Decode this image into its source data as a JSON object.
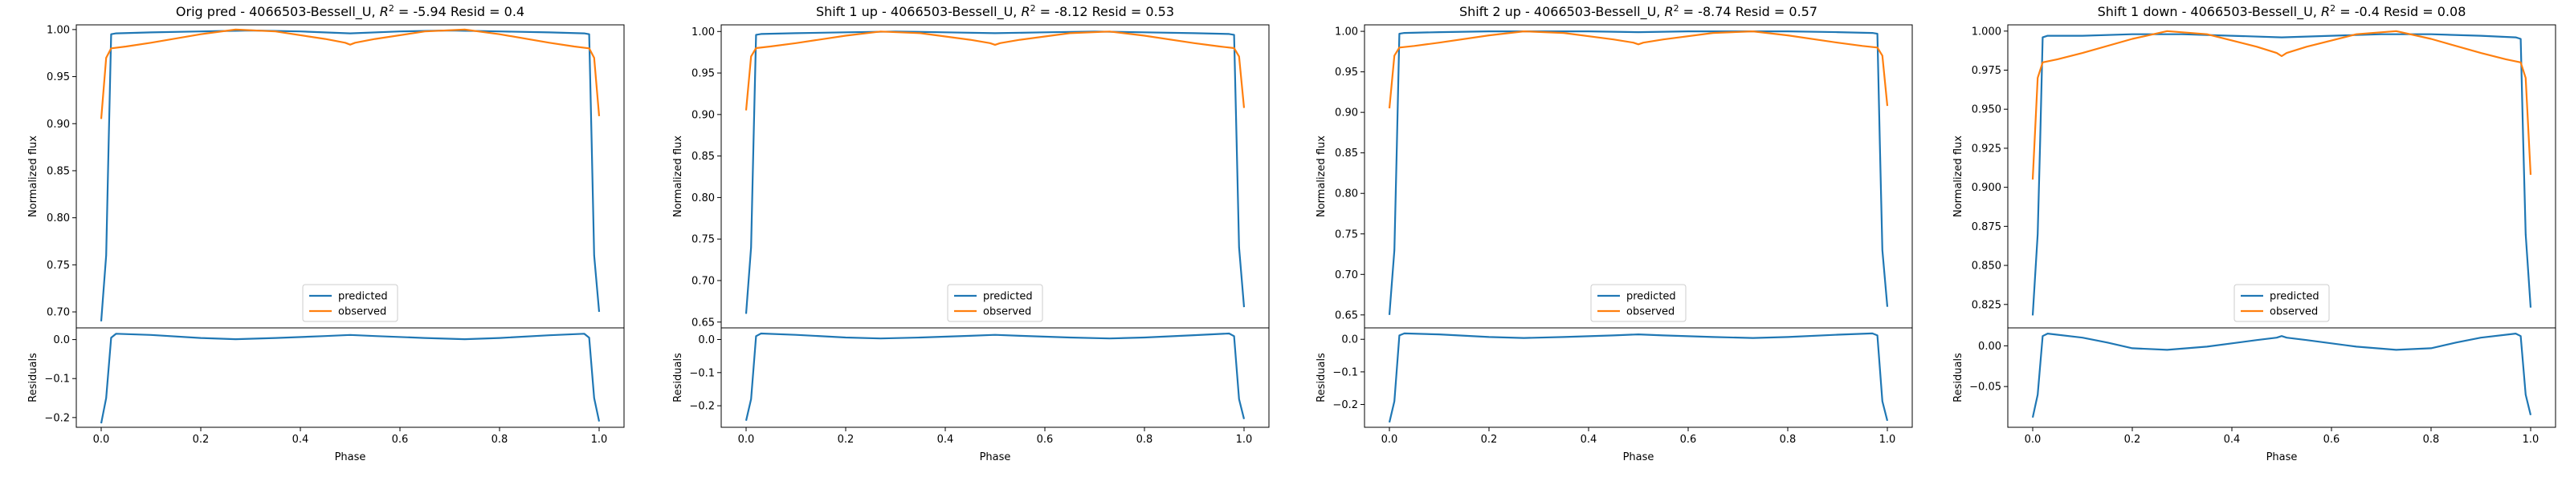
{
  "colors": {
    "predicted": "#1f77b4",
    "observed": "#ff7f0e",
    "axis": "#000000"
  },
  "chart_data": [
    {
      "type": "line",
      "title": "Orig pred - 4066503-Bessell_U, $R^2$ = -5.94 Resid = 0.4",
      "title_parts": {
        "pre": "Orig pred - 4066503-Bessell_U, ",
        "r2_sym": "R",
        "r2_sup": "2",
        "post": " = -5.94 Resid = 0.4"
      },
      "xlabel": "Phase",
      "ylabel_top": "Normalized flux",
      "ylabel_bottom": "Residuals",
      "xlim": [
        -0.05,
        1.05
      ],
      "xticks": [
        0.0,
        0.2,
        0.4,
        0.6,
        0.8,
        1.0
      ],
      "xtick_labels": [
        "0.0",
        "0.2",
        "0.4",
        "0.6",
        "0.8",
        "1.0"
      ],
      "top_ylim": [
        0.683,
        1.005
      ],
      "top_yticks": [
        0.7,
        0.75,
        0.8,
        0.85,
        0.9,
        0.95,
        1.0
      ],
      "top_ytick_labels": [
        "0.70",
        "0.75",
        "0.80",
        "0.85",
        "0.90",
        "0.95",
        "1.00"
      ],
      "bottom_ylim": [
        -0.225,
        0.03
      ],
      "bottom_yticks": [
        -0.2,
        -0.1,
        0.0
      ],
      "bottom_ytick_labels": [
        "−0.2",
        "−0.1",
        "0.0"
      ],
      "legend": [
        "predicted",
        "observed"
      ],
      "legend_loc": "lower center",
      "series": [
        {
          "name": "predicted",
          "x": [
            0.0,
            0.01,
            0.015,
            0.02,
            0.03,
            0.1,
            0.2,
            0.3,
            0.4,
            0.5,
            0.6,
            0.7,
            0.8,
            0.9,
            0.97,
            0.98,
            0.985,
            0.99,
            1.0
          ],
          "y": [
            0.69,
            0.76,
            0.88,
            0.995,
            0.996,
            0.997,
            0.998,
            0.999,
            0.998,
            0.996,
            0.998,
            0.999,
            0.998,
            0.997,
            0.996,
            0.995,
            0.88,
            0.76,
            0.7
          ]
        },
        {
          "name": "observed",
          "x": [
            0.0,
            0.01,
            0.02,
            0.05,
            0.1,
            0.2,
            0.27,
            0.35,
            0.45,
            0.49,
            0.5,
            0.51,
            0.55,
            0.65,
            0.73,
            0.8,
            0.9,
            0.95,
            0.98,
            0.99,
            1.0
          ],
          "y": [
            0.905,
            0.97,
            0.98,
            0.982,
            0.986,
            0.995,
            1.0,
            0.998,
            0.99,
            0.986,
            0.984,
            0.986,
            0.99,
            0.998,
            1.0,
            0.995,
            0.986,
            0.982,
            0.98,
            0.97,
            0.908
          ]
        },
        {
          "name": "residual",
          "x": [
            0.0,
            0.01,
            0.02,
            0.03,
            0.1,
            0.2,
            0.27,
            0.35,
            0.45,
            0.5,
            0.55,
            0.65,
            0.73,
            0.8,
            0.9,
            0.97,
            0.98,
            0.99,
            1.0
          ],
          "y": [
            -0.215,
            -0.15,
            0.005,
            0.015,
            0.012,
            0.004,
            0.001,
            0.004,
            0.009,
            0.012,
            0.009,
            0.004,
            0.001,
            0.004,
            0.011,
            0.015,
            0.005,
            -0.15,
            -0.21
          ]
        }
      ]
    },
    {
      "type": "line",
      "title": "Shift 1 up - 4066503-Bessell_U, $R^2$ = -8.12 Resid = 0.53",
      "title_parts": {
        "pre": "Shift 1 up - 4066503-Bessell_U, ",
        "r2_sym": "R",
        "r2_sup": "2",
        "post": " = -8.12 Resid = 0.53"
      },
      "xlabel": "Phase",
      "ylabel_top": "Normalized flux",
      "ylabel_bottom": "Residuals",
      "xlim": [
        -0.05,
        1.05
      ],
      "xticks": [
        0.0,
        0.2,
        0.4,
        0.6,
        0.8,
        1.0
      ],
      "xtick_labels": [
        "0.0",
        "0.2",
        "0.4",
        "0.6",
        "0.8",
        "1.0"
      ],
      "top_ylim": [
        0.643,
        1.008
      ],
      "top_yticks": [
        0.65,
        0.7,
        0.75,
        0.8,
        0.85,
        0.9,
        0.95,
        1.0
      ],
      "top_ytick_labels": [
        "0.65",
        "0.70",
        "0.75",
        "0.80",
        "0.85",
        "0.90",
        "0.95",
        "1.00"
      ],
      "bottom_ylim": [
        -0.265,
        0.035
      ],
      "bottom_yticks": [
        -0.2,
        -0.1,
        0.0
      ],
      "bottom_ytick_labels": [
        "−0.2",
        "−0.1",
        "0.0"
      ],
      "legend": [
        "predicted",
        "observed"
      ],
      "legend_loc": "lower center",
      "series": [
        {
          "name": "predicted",
          "x": [
            0.0,
            0.01,
            0.015,
            0.02,
            0.03,
            0.1,
            0.2,
            0.3,
            0.4,
            0.5,
            0.6,
            0.7,
            0.8,
            0.9,
            0.97,
            0.98,
            0.985,
            0.99,
            1.0
          ],
          "y": [
            0.66,
            0.74,
            0.87,
            0.996,
            0.997,
            0.998,
            0.999,
            1.0,
            0.999,
            0.998,
            0.999,
            1.0,
            0.999,
            0.998,
            0.997,
            0.996,
            0.87,
            0.74,
            0.668
          ]
        },
        {
          "name": "observed",
          "x": [
            0.0,
            0.01,
            0.02,
            0.05,
            0.1,
            0.2,
            0.27,
            0.35,
            0.45,
            0.49,
            0.5,
            0.51,
            0.55,
            0.65,
            0.73,
            0.8,
            0.9,
            0.95,
            0.98,
            0.99,
            1.0
          ],
          "y": [
            0.905,
            0.97,
            0.98,
            0.982,
            0.986,
            0.995,
            1.0,
            0.998,
            0.99,
            0.986,
            0.984,
            0.986,
            0.99,
            0.998,
            1.0,
            0.995,
            0.986,
            0.982,
            0.98,
            0.97,
            0.908
          ]
        },
        {
          "name": "residual",
          "x": [
            0.0,
            0.01,
            0.02,
            0.03,
            0.1,
            0.2,
            0.27,
            0.35,
            0.45,
            0.5,
            0.55,
            0.65,
            0.73,
            0.8,
            0.9,
            0.97,
            0.98,
            0.99,
            1.0
          ],
          "y": [
            -0.245,
            -0.18,
            0.01,
            0.018,
            0.014,
            0.006,
            0.003,
            0.006,
            0.011,
            0.014,
            0.011,
            0.006,
            0.003,
            0.006,
            0.013,
            0.018,
            0.01,
            -0.18,
            -0.24
          ]
        }
      ]
    },
    {
      "type": "line",
      "title": "Shift 2 up - 4066503-Bessell_U, $R^2$ = -8.74 Resid = 0.57",
      "title_parts": {
        "pre": "Shift 2 up - 4066503-Bessell_U, ",
        "r2_sym": "R",
        "r2_sup": "2",
        "post": " = -8.74 Resid = 0.57"
      },
      "xlabel": "Phase",
      "ylabel_top": "Normalized flux",
      "ylabel_bottom": "Residuals",
      "xlim": [
        -0.05,
        1.05
      ],
      "xticks": [
        0.0,
        0.2,
        0.4,
        0.6,
        0.8,
        1.0
      ],
      "xtick_labels": [
        "0.0",
        "0.2",
        "0.4",
        "0.6",
        "0.8",
        "1.0"
      ],
      "top_ylim": [
        0.634,
        1.008
      ],
      "top_yticks": [
        0.65,
        0.7,
        0.75,
        0.8,
        0.85,
        0.9,
        0.95,
        1.0
      ],
      "top_ytick_labels": [
        "0.65",
        "0.70",
        "0.75",
        "0.80",
        "0.85",
        "0.90",
        "0.95",
        "1.00"
      ],
      "bottom_ylim": [
        -0.27,
        0.035
      ],
      "bottom_yticks": [
        -0.2,
        -0.1,
        0.0
      ],
      "bottom_ytick_labels": [
        "−0.2",
        "−0.1",
        "0.0"
      ],
      "legend": [
        "predicted",
        "observed"
      ],
      "legend_loc": "lower center",
      "series": [
        {
          "name": "predicted",
          "x": [
            0.0,
            0.01,
            0.015,
            0.02,
            0.03,
            0.1,
            0.2,
            0.3,
            0.4,
            0.5,
            0.6,
            0.7,
            0.8,
            0.9,
            0.97,
            0.98,
            0.985,
            0.99,
            1.0
          ],
          "y": [
            0.65,
            0.73,
            0.86,
            0.997,
            0.998,
            0.999,
            1.0,
            1.0,
            1.0,
            0.999,
            1.0,
            1.0,
            1.0,
            0.999,
            0.998,
            0.997,
            0.86,
            0.73,
            0.66
          ]
        },
        {
          "name": "observed",
          "x": [
            0.0,
            0.01,
            0.02,
            0.05,
            0.1,
            0.2,
            0.27,
            0.35,
            0.45,
            0.49,
            0.5,
            0.51,
            0.55,
            0.65,
            0.73,
            0.8,
            0.9,
            0.95,
            0.98,
            0.99,
            1.0
          ],
          "y": [
            0.905,
            0.97,
            0.98,
            0.982,
            0.986,
            0.995,
            1.0,
            0.998,
            0.99,
            0.986,
            0.984,
            0.986,
            0.99,
            0.998,
            1.0,
            0.995,
            0.986,
            0.982,
            0.98,
            0.97,
            0.908
          ]
        },
        {
          "name": "residual",
          "x": [
            0.0,
            0.01,
            0.02,
            0.03,
            0.1,
            0.2,
            0.27,
            0.35,
            0.45,
            0.5,
            0.55,
            0.65,
            0.73,
            0.8,
            0.9,
            0.97,
            0.98,
            0.99,
            1.0
          ],
          "y": [
            -0.255,
            -0.19,
            0.012,
            0.018,
            0.015,
            0.007,
            0.004,
            0.007,
            0.012,
            0.015,
            0.012,
            0.007,
            0.004,
            0.007,
            0.014,
            0.018,
            0.012,
            -0.19,
            -0.25
          ]
        }
      ]
    },
    {
      "type": "line",
      "title": "Shift 1 down - 4066503-Bessell_U, $R^2$ = -0.4 Resid = 0.08",
      "title_parts": {
        "pre": "Shift 1 down - 4066503-Bessell_U, ",
        "r2_sym": "R",
        "r2_sup": "2",
        "post": " = -0.4 Resid = 0.08"
      },
      "xlabel": "Phase",
      "ylabel_top": "Normalized flux",
      "ylabel_bottom": "Residuals",
      "xlim": [
        -0.05,
        1.05
      ],
      "xticks": [
        0.0,
        0.2,
        0.4,
        0.6,
        0.8,
        1.0
      ],
      "xtick_labels": [
        "0.0",
        "0.2",
        "0.4",
        "0.6",
        "0.8",
        "1.0"
      ],
      "top_ylim": [
        0.81,
        1.004
      ],
      "top_yticks": [
        0.825,
        0.85,
        0.875,
        0.9,
        0.925,
        0.95,
        0.975,
        1.0
      ],
      "top_ytick_labels": [
        "0.825",
        "0.850",
        "0.875",
        "0.900",
        "0.925",
        "0.950",
        "0.975",
        "1.000"
      ],
      "bottom_ylim": [
        -0.1,
        0.022
      ],
      "bottom_yticks": [
        -0.05,
        0.0
      ],
      "bottom_ytick_labels": [
        "−0.05",
        "0.00"
      ],
      "legend": [
        "predicted",
        "observed"
      ],
      "legend_loc": "lower center",
      "series": [
        {
          "name": "predicted",
          "x": [
            0.0,
            0.01,
            0.015,
            0.02,
            0.03,
            0.1,
            0.2,
            0.3,
            0.4,
            0.5,
            0.6,
            0.7,
            0.8,
            0.9,
            0.97,
            0.98,
            0.985,
            0.99,
            1.0
          ],
          "y": [
            0.818,
            0.87,
            0.93,
            0.996,
            0.997,
            0.997,
            0.998,
            0.998,
            0.997,
            0.996,
            0.997,
            0.998,
            0.998,
            0.997,
            0.996,
            0.995,
            0.93,
            0.87,
            0.823
          ]
        },
        {
          "name": "observed",
          "x": [
            0.0,
            0.01,
            0.02,
            0.05,
            0.1,
            0.2,
            0.27,
            0.35,
            0.45,
            0.49,
            0.5,
            0.51,
            0.55,
            0.65,
            0.73,
            0.8,
            0.9,
            0.95,
            0.98,
            0.99,
            1.0
          ],
          "y": [
            0.905,
            0.97,
            0.98,
            0.982,
            0.986,
            0.995,
            1.0,
            0.998,
            0.99,
            0.986,
            0.984,
            0.986,
            0.99,
            0.998,
            1.0,
            0.995,
            0.986,
            0.982,
            0.98,
            0.97,
            0.908
          ]
        },
        {
          "name": "residual",
          "x": [
            0.0,
            0.01,
            0.02,
            0.03,
            0.1,
            0.15,
            0.2,
            0.27,
            0.35,
            0.45,
            0.49,
            0.5,
            0.51,
            0.55,
            0.65,
            0.73,
            0.8,
            0.85,
            0.9,
            0.97,
            0.98,
            0.99,
            1.0
          ],
          "y": [
            -0.088,
            -0.06,
            0.012,
            0.015,
            0.01,
            0.004,
            -0.003,
            -0.005,
            -0.001,
            0.007,
            0.01,
            0.012,
            0.01,
            0.007,
            -0.001,
            -0.005,
            -0.003,
            0.004,
            0.01,
            0.015,
            0.012,
            -0.06,
            -0.085
          ]
        }
      ]
    }
  ]
}
